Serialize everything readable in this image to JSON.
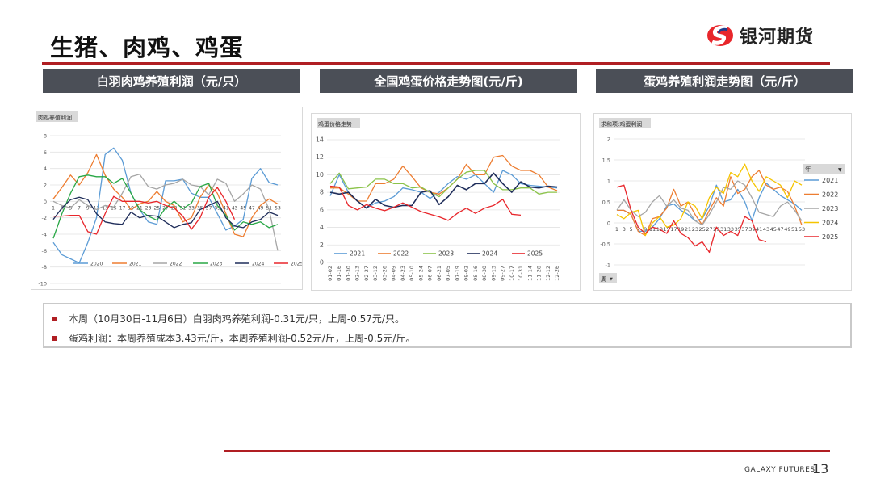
{
  "page": {
    "title": "生猪、肉鸡、鸡蛋",
    "logo_text": "银河期货",
    "footer": "GALAXY FUTURES",
    "page_number": "13",
    "accent_color": "#b01e23"
  },
  "sections": [
    {
      "label": "白羽肉鸡养殖利润（元/只）"
    },
    {
      "label": "全国鸡蛋价格走势图(元/斤)"
    },
    {
      "label": "蛋鸡养殖利润走势图（元/斤）"
    }
  ],
  "notes": [
    "本周（10月30日-11月6日）白羽肉鸡养殖利润-0.31元/只，上周-0.57元/只。",
    "蛋鸡利润：本周养殖成本3.43元/斤，本周养殖利润-0.52元/斤，上周-0.5元/斤。"
  ],
  "chart_data": [
    {
      "type": "line",
      "title": "肉鸡养殖利润",
      "xlabel": "",
      "ylabel": "",
      "ylim": [
        -10,
        8
      ],
      "yticks": [
        "8",
        "6",
        "4",
        "2",
        "0",
        "-2",
        "-4",
        "-6",
        "-8",
        "-10"
      ],
      "x_weeks": [
        1,
        3,
        5,
        7,
        9,
        11,
        13,
        15,
        17,
        19,
        21,
        23,
        25,
        27,
        29,
        31,
        33,
        35,
        37,
        39,
        41,
        43,
        45,
        47,
        49,
        51,
        53
      ],
      "xtick_labels": [
        "1",
        "3",
        "5",
        "7",
        "9",
        "11",
        "13",
        "15",
        "17",
        "19",
        "21",
        "23",
        "25",
        "27",
        "29",
        "31",
        "33",
        "35",
        "37",
        "39",
        "41",
        "43",
        "45",
        "47",
        "49",
        "51",
        "53"
      ],
      "legend": "bottom",
      "series": [
        {
          "name": "2020",
          "color": "#5b9bd5",
          "values": [
            -5,
            -6.5,
            -7,
            -7.5,
            -5,
            -2,
            5.7,
            6.5,
            5,
            1,
            -1,
            -2.5,
            -2.8,
            2.5,
            2.5,
            2.7,
            1,
            0.5,
            0.5,
            -1.5,
            -3.5,
            -3,
            -2.2,
            2.8,
            4,
            2.3,
            2
          ]
        },
        {
          "name": "2021",
          "color": "#ed7d31",
          "values": [
            0.3,
            1.7,
            3.2,
            2,
            3.5,
            5.7,
            3.2,
            1.5,
            0.5,
            -1,
            -0.3,
            0,
            1.2,
            0,
            -0.5,
            -2.5,
            -2,
            0.5,
            2,
            1,
            -1.5,
            -4,
            -4.3,
            -2,
            -0.5,
            0.3,
            -0.3
          ]
        },
        {
          "name": "2022",
          "color": "#a5a5a5",
          "values": [
            0,
            -0.5,
            -0.8,
            0.2,
            -0.5,
            -1,
            -0.5,
            -0.7,
            1,
            3,
            3.3,
            1.8,
            1.5,
            2,
            2.2,
            2.7,
            2,
            1.8,
            0.8,
            2.7,
            2.2,
            0,
            0.9,
            2,
            1.5,
            -1,
            -6
          ]
        },
        {
          "name": "2023",
          "color": "#28a745",
          "values": [
            -4.5,
            -1.5,
            1,
            3,
            3.2,
            3,
            3,
            2.2,
            2.8,
            1,
            -1,
            -1.8,
            -2.3,
            -0.8,
            0,
            -0.9,
            -0.2,
            1.8,
            2.2,
            -0.5,
            -1.7,
            -3.5,
            -2.5,
            -2.8,
            -2.5,
            -3.2,
            -2.8
          ]
        },
        {
          "name": "2024",
          "color": "#1f2d5a",
          "values": [
            -2.2,
            -0.8,
            0.2,
            0.5,
            0.2,
            -1.5,
            -2.5,
            -2.7,
            -2.8,
            -1.3,
            -2,
            -1.7,
            -1.8,
            -2.5,
            -3.2,
            -2.8,
            -2.6,
            -1,
            -0.5,
            0,
            -2,
            -3,
            -3.2,
            -2.5,
            -2.2,
            -1.3,
            -1.7
          ]
        },
        {
          "name": "2025",
          "color": "#e8262b",
          "values": [
            -1.8,
            -1.8,
            -1.7,
            -1.7,
            -3.7,
            -4,
            -1.5,
            0.6,
            0,
            0,
            0,
            -0.2,
            0,
            -0.5,
            -0.8,
            -1.8,
            -3.4,
            -2,
            0.5,
            1.7,
            0,
            -2.2
          ]
        }
      ]
    },
    {
      "type": "line",
      "title": "鸡蛋价格走势",
      "xlabel": "",
      "ylabel": "",
      "ylim": [
        0,
        14
      ],
      "yticks": [
        "14",
        "12",
        "10",
        "8",
        "6",
        "4",
        "2",
        "0"
      ],
      "xtick_labels": [
        "01-02",
        "01-16",
        "01-30",
        "02-13",
        "02-27",
        "03-12",
        "03-26",
        "04-09",
        "04-23",
        "05-10",
        "05-24",
        "06-07",
        "06-21",
        "07-05",
        "07-19",
        "08-02",
        "08-16",
        "08-30",
        "09-13",
        "09-27",
        "10-17",
        "10-31",
        "11-14",
        "11-28",
        "12-12",
        "12-26"
      ],
      "legend": "bottom",
      "series": [
        {
          "name": "2021",
          "color": "#5b9bd5",
          "values": [
            7.6,
            10,
            8,
            7,
            6.2,
            6.8,
            7,
            7.5,
            8.5,
            8.3,
            8,
            7.3,
            8,
            9,
            9.8,
            9.5,
            10,
            9,
            8,
            10.5,
            10,
            9,
            8.8,
            8.7,
            8.6,
            8.5
          ]
        },
        {
          "name": "2022",
          "color": "#ed7d31",
          "values": [
            8.5,
            8.5,
            7.8,
            7,
            7,
            9,
            9,
            9.5,
            11,
            9.8,
            8.5,
            8,
            7.8,
            8.5,
            9.5,
            11.2,
            10,
            10,
            12,
            12.2,
            11,
            10.5,
            10.5,
            10,
            8.6,
            8.2
          ]
        },
        {
          "name": "2023",
          "color": "#8bc34a",
          "values": [
            9,
            10.2,
            8.4,
            8.5,
            8.6,
            9.5,
            9.5,
            9,
            9,
            8.5,
            8.6,
            8,
            7.5,
            8.5,
            9.5,
            10.3,
            10.5,
            10.5,
            9,
            8.3,
            8.3,
            8.5,
            8.5,
            7.8,
            8,
            8
          ]
        },
        {
          "name": "2024",
          "color": "#1f2d5a",
          "values": [
            8,
            7.8,
            8,
            7,
            6.2,
            7.2,
            6.5,
            6.3,
            6.5,
            6.5,
            8,
            8.2,
            6.6,
            7.5,
            8.8,
            8.3,
            9,
            9,
            10.2,
            9,
            8,
            9.2,
            8.6,
            8.5,
            8.7,
            8.6
          ]
        },
        {
          "name": "2025",
          "color": "#e8262b",
          "values": [
            8.7,
            8.6,
            6.5,
            6,
            6.6,
            6.2,
            5.9,
            6.3,
            6.8,
            6.3,
            5.8,
            5.5,
            5.2,
            4.8,
            5.6,
            6.2,
            5.6,
            6.2,
            6.5,
            7.2,
            5.5,
            5.4
          ]
        }
      ]
    },
    {
      "type": "line",
      "title": "求和项:鸡蛋利润",
      "xlabel": "",
      "ylabel": "",
      "ylim": [
        -1,
        2
      ],
      "yticks": [
        "2",
        "1.5",
        "1",
        "0.5",
        "0",
        "-0.5",
        "-1"
      ],
      "x_weeks": [
        1,
        3,
        5,
        7,
        9,
        11,
        13,
        15,
        17,
        19,
        21,
        23,
        25,
        27,
        29,
        31,
        33,
        35,
        37,
        39,
        41,
        43,
        45,
        47,
        49,
        51,
        53
      ],
      "xtick_labels": [
        "1",
        "3",
        "5",
        "7",
        "9",
        "11",
        "13",
        "15",
        "17",
        "19",
        "21",
        "23",
        "25",
        "27",
        "29",
        "31",
        "33",
        "35",
        "37",
        "39",
        "41",
        "43",
        "45",
        "47",
        "49",
        "51",
        "53"
      ],
      "legend": "right",
      "legend_title": "年",
      "axis_field": "周",
      "series": [
        {
          "name": "2021",
          "color": "#5b9bd5",
          "values": [
            0.3,
            0.3,
            0.2,
            -0.2,
            -0.2,
            -0.1,
            0.1,
            0.4,
            0.45,
            0.3,
            0.2,
            0.05,
            0.1,
            0.4,
            0.9,
            0.5,
            0.55,
            0.8,
            0.5,
            0.05,
            0.6,
            0.95,
            0.8,
            0.65,
            0.55,
            0.45,
            0.3
          ]
        },
        {
          "name": "2022",
          "color": "#ed7d31",
          "values": [
            0.3,
            0.3,
            0.2,
            -0.2,
            -0.3,
            0.1,
            0.15,
            0.35,
            0.8,
            0.4,
            0.5,
            0.2,
            -0.05,
            0.3,
            0.6,
            0.4,
            1.1,
            0.7,
            0.8,
            1.1,
            1.25,
            0.9,
            0.8,
            0.85,
            0.75,
            0.4,
            -0.05
          ]
        },
        {
          "name": "2023",
          "color": "#a5a5a5",
          "values": [
            0.3,
            0.55,
            0.3,
            0.15,
            0.25,
            0.5,
            0.65,
            0.4,
            0.55,
            0.35,
            0.3,
            0.05,
            -0.05,
            0.2,
            0.5,
            0.85,
            0.8,
            1.0,
            0.9,
            0.6,
            0.25,
            0.2,
            0.15,
            0.4,
            0.5,
            0.3,
            0.05
          ]
        },
        {
          "name": "2024",
          "color": "#f5c400",
          "values": [
            0.2,
            0.1,
            0.25,
            0.3,
            -0.3,
            0,
            0.15,
            -0.1,
            -0.05,
            0.1,
            0.5,
            0.4,
            0.1,
            0.6,
            0.85,
            0.7,
            1.2,
            1.1,
            1.4,
            1,
            0.75,
            1.1,
            1.0,
            0.9,
            0.6,
            1.0,
            0.9
          ]
        },
        {
          "name": "2025",
          "color": "#e8262b",
          "values": [
            0.85,
            0.9,
            0.3,
            -0.1,
            -0.25,
            -0.1,
            -0.15,
            -0.25,
            0.05,
            -0.25,
            -0.35,
            -0.55,
            -0.45,
            -0.7,
            -0.1,
            -0.3,
            -0.2,
            -0.3,
            0.15,
            0.05,
            -0.4,
            -0.45
          ]
        }
      ]
    }
  ]
}
